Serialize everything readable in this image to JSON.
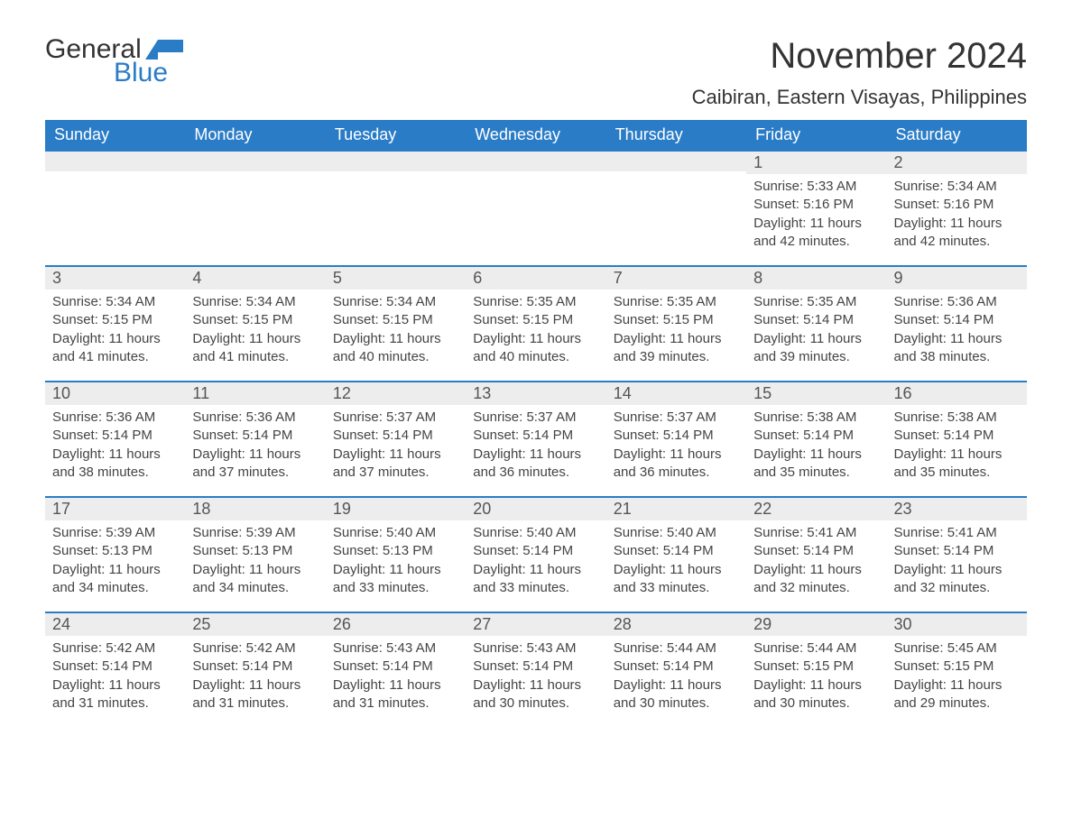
{
  "logo": {
    "word1": "General",
    "word2": "Blue"
  },
  "title": "November 2024",
  "location": "Caibiran, Eastern Visayas, Philippines",
  "weekdays": [
    "Sunday",
    "Monday",
    "Tuesday",
    "Wednesday",
    "Thursday",
    "Friday",
    "Saturday"
  ],
  "colors": {
    "header_bg": "#2a7cc7",
    "header_text": "#ffffff",
    "daynum_bg": "#ededed",
    "border_top": "#2a7cc7",
    "text": "#333333",
    "logo_blue": "#2a7cc7"
  },
  "layout": {
    "columns": 7,
    "rows": 5,
    "first_day_column_index": 5,
    "fontsize_day_body": 15,
    "fontsize_day_num": 18,
    "fontsize_title": 40,
    "fontsize_location": 22,
    "fontsize_weekday": 18
  },
  "days": [
    {
      "n": "1",
      "sr": "Sunrise: 5:33 AM",
      "ss": "Sunset: 5:16 PM",
      "dl": "Daylight: 11 hours and 42 minutes."
    },
    {
      "n": "2",
      "sr": "Sunrise: 5:34 AM",
      "ss": "Sunset: 5:16 PM",
      "dl": "Daylight: 11 hours and 42 minutes."
    },
    {
      "n": "3",
      "sr": "Sunrise: 5:34 AM",
      "ss": "Sunset: 5:15 PM",
      "dl": "Daylight: 11 hours and 41 minutes."
    },
    {
      "n": "4",
      "sr": "Sunrise: 5:34 AM",
      "ss": "Sunset: 5:15 PM",
      "dl": "Daylight: 11 hours and 41 minutes."
    },
    {
      "n": "5",
      "sr": "Sunrise: 5:34 AM",
      "ss": "Sunset: 5:15 PM",
      "dl": "Daylight: 11 hours and 40 minutes."
    },
    {
      "n": "6",
      "sr": "Sunrise: 5:35 AM",
      "ss": "Sunset: 5:15 PM",
      "dl": "Daylight: 11 hours and 40 minutes."
    },
    {
      "n": "7",
      "sr": "Sunrise: 5:35 AM",
      "ss": "Sunset: 5:15 PM",
      "dl": "Daylight: 11 hours and 39 minutes."
    },
    {
      "n": "8",
      "sr": "Sunrise: 5:35 AM",
      "ss": "Sunset: 5:14 PM",
      "dl": "Daylight: 11 hours and 39 minutes."
    },
    {
      "n": "9",
      "sr": "Sunrise: 5:36 AM",
      "ss": "Sunset: 5:14 PM",
      "dl": "Daylight: 11 hours and 38 minutes."
    },
    {
      "n": "10",
      "sr": "Sunrise: 5:36 AM",
      "ss": "Sunset: 5:14 PM",
      "dl": "Daylight: 11 hours and 38 minutes."
    },
    {
      "n": "11",
      "sr": "Sunrise: 5:36 AM",
      "ss": "Sunset: 5:14 PM",
      "dl": "Daylight: 11 hours and 37 minutes."
    },
    {
      "n": "12",
      "sr": "Sunrise: 5:37 AM",
      "ss": "Sunset: 5:14 PM",
      "dl": "Daylight: 11 hours and 37 minutes."
    },
    {
      "n": "13",
      "sr": "Sunrise: 5:37 AM",
      "ss": "Sunset: 5:14 PM",
      "dl": "Daylight: 11 hours and 36 minutes."
    },
    {
      "n": "14",
      "sr": "Sunrise: 5:37 AM",
      "ss": "Sunset: 5:14 PM",
      "dl": "Daylight: 11 hours and 36 minutes."
    },
    {
      "n": "15",
      "sr": "Sunrise: 5:38 AM",
      "ss": "Sunset: 5:14 PM",
      "dl": "Daylight: 11 hours and 35 minutes."
    },
    {
      "n": "16",
      "sr": "Sunrise: 5:38 AM",
      "ss": "Sunset: 5:14 PM",
      "dl": "Daylight: 11 hours and 35 minutes."
    },
    {
      "n": "17",
      "sr": "Sunrise: 5:39 AM",
      "ss": "Sunset: 5:13 PM",
      "dl": "Daylight: 11 hours and 34 minutes."
    },
    {
      "n": "18",
      "sr": "Sunrise: 5:39 AM",
      "ss": "Sunset: 5:13 PM",
      "dl": "Daylight: 11 hours and 34 minutes."
    },
    {
      "n": "19",
      "sr": "Sunrise: 5:40 AM",
      "ss": "Sunset: 5:13 PM",
      "dl": "Daylight: 11 hours and 33 minutes."
    },
    {
      "n": "20",
      "sr": "Sunrise: 5:40 AM",
      "ss": "Sunset: 5:14 PM",
      "dl": "Daylight: 11 hours and 33 minutes."
    },
    {
      "n": "21",
      "sr": "Sunrise: 5:40 AM",
      "ss": "Sunset: 5:14 PM",
      "dl": "Daylight: 11 hours and 33 minutes."
    },
    {
      "n": "22",
      "sr": "Sunrise: 5:41 AM",
      "ss": "Sunset: 5:14 PM",
      "dl": "Daylight: 11 hours and 32 minutes."
    },
    {
      "n": "23",
      "sr": "Sunrise: 5:41 AM",
      "ss": "Sunset: 5:14 PM",
      "dl": "Daylight: 11 hours and 32 minutes."
    },
    {
      "n": "24",
      "sr": "Sunrise: 5:42 AM",
      "ss": "Sunset: 5:14 PM",
      "dl": "Daylight: 11 hours and 31 minutes."
    },
    {
      "n": "25",
      "sr": "Sunrise: 5:42 AM",
      "ss": "Sunset: 5:14 PM",
      "dl": "Daylight: 11 hours and 31 minutes."
    },
    {
      "n": "26",
      "sr": "Sunrise: 5:43 AM",
      "ss": "Sunset: 5:14 PM",
      "dl": "Daylight: 11 hours and 31 minutes."
    },
    {
      "n": "27",
      "sr": "Sunrise: 5:43 AM",
      "ss": "Sunset: 5:14 PM",
      "dl": "Daylight: 11 hours and 30 minutes."
    },
    {
      "n": "28",
      "sr": "Sunrise: 5:44 AM",
      "ss": "Sunset: 5:14 PM",
      "dl": "Daylight: 11 hours and 30 minutes."
    },
    {
      "n": "29",
      "sr": "Sunrise: 5:44 AM",
      "ss": "Sunset: 5:15 PM",
      "dl": "Daylight: 11 hours and 30 minutes."
    },
    {
      "n": "30",
      "sr": "Sunrise: 5:45 AM",
      "ss": "Sunset: 5:15 PM",
      "dl": "Daylight: 11 hours and 29 minutes."
    }
  ]
}
